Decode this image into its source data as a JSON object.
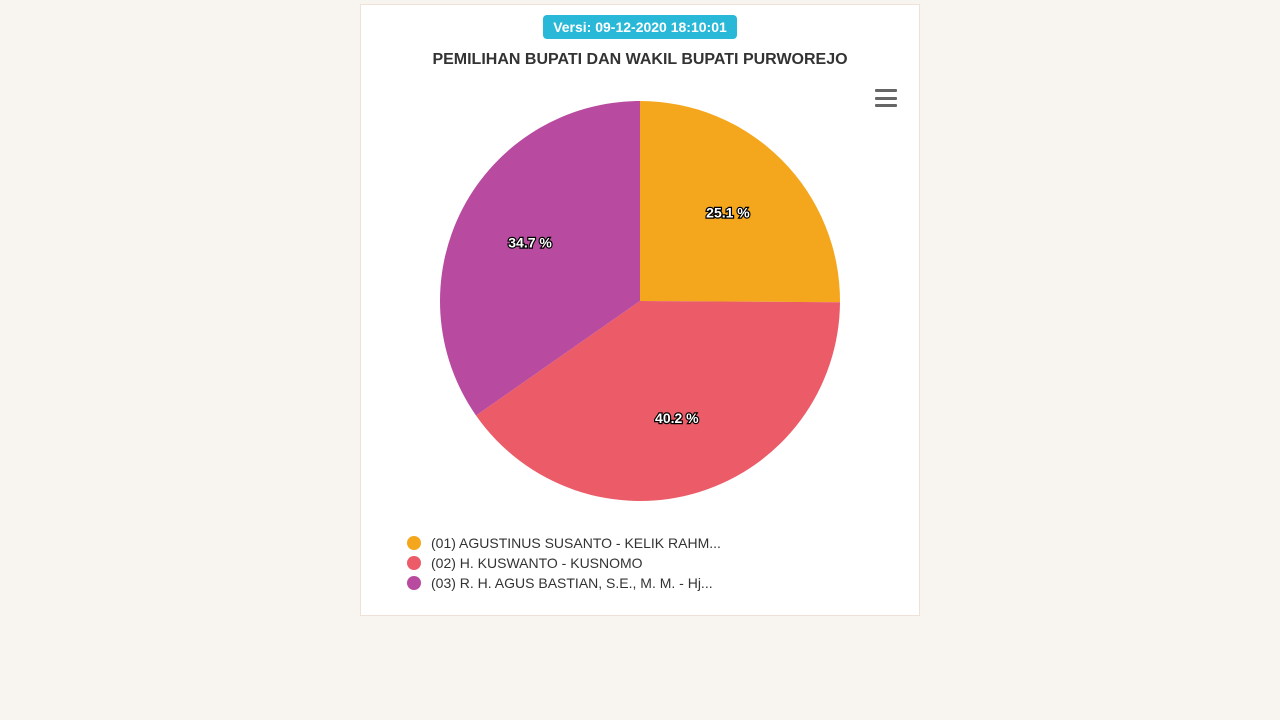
{
  "version_badge": {
    "text": "Versi: 09-12-2020 18:10:01",
    "bg_color": "#29b8d8",
    "text_color": "#ffffff"
  },
  "title": "PEMILIHAN BUPATI DAN WAKIL BUPATI PURWOREJO",
  "menu_icon_color": "#666666",
  "pie_chart": {
    "type": "pie",
    "radius": 200,
    "start_angle_deg": 0,
    "background_color": "#ffffff",
    "label_fontsize": 14,
    "label_fill": "#ffffff",
    "label_stroke": "#000000",
    "slices": [
      {
        "label": "25.1 %",
        "value": 25.1,
        "color": "#f4a71d"
      },
      {
        "label": "40.2 %",
        "value": 40.2,
        "color": "#eb5c68"
      },
      {
        "label": "34.7 %",
        "value": 34.7,
        "color": "#b84ba0"
      }
    ]
  },
  "legend": {
    "items": [
      {
        "color": "#f4a71d",
        "label": "(01) AGUSTINUS SUSANTO - KELIK RAHM..."
      },
      {
        "color": "#eb5c68",
        "label": "(02) H. KUSWANTO - KUSNOMO"
      },
      {
        "color": "#b84ba0",
        "label": "(03) R. H. AGUS BASTIAN, S.E., M. M. - Hj..."
      }
    ]
  }
}
